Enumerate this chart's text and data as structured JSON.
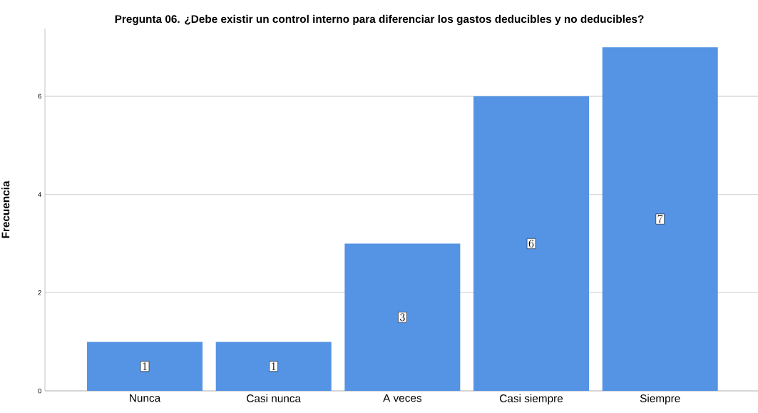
{
  "chart_data": {
    "type": "bar",
    "title": "Pregunta 06. ¿Debe existir un control interno para diferenciar los gastos deducibles y no deducibles?",
    "ylabel": "Frecuencia",
    "categories": [
      "Nunca",
      "Casi nunca",
      "A veces",
      "Casi siempre",
      "Siempre"
    ],
    "values": [
      1,
      1,
      3,
      6,
      7
    ],
    "color": "#5593e4",
    "ylim": [
      0,
      7.38
    ],
    "yticks": [
      0,
      2,
      4,
      6
    ],
    "grid": "y",
    "data_labels": true
  }
}
